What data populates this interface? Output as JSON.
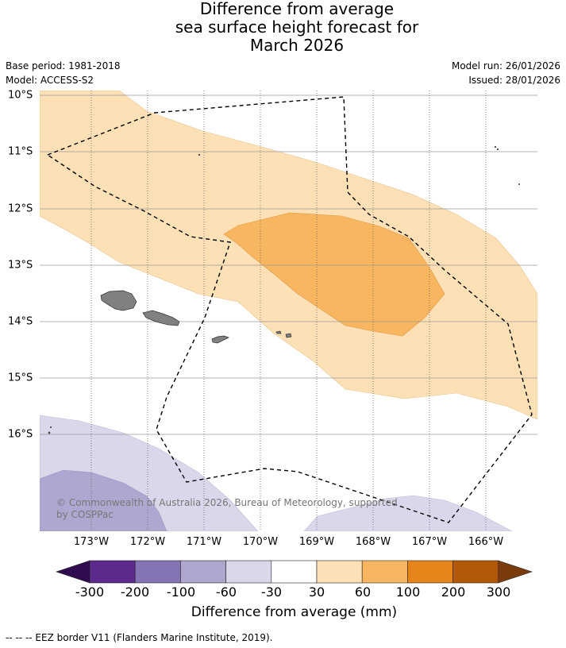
{
  "title": {
    "line1": "Difference from average",
    "line2": "sea surface height forecast for",
    "line3": "March 2026"
  },
  "meta": {
    "base_period": "Base period: 1981-2018",
    "model": "Model: ACCESS-S2",
    "model_run": "Model run: 26/01/2026",
    "issued": "Issued: 28/01/2026"
  },
  "axes": {
    "longitude_labels": [
      "173°W",
      "172°W",
      "171°W",
      "170°W",
      "169°W",
      "168°W",
      "167°W",
      "166°W"
    ],
    "latitude_labels": [
      "10°S",
      "11°S",
      "12°S",
      "13°S",
      "14°S",
      "15°S",
      "16°S"
    ]
  },
  "copyright": {
    "line1": "© Commonwealth of Australia 2026, Bureau of Meteorology, supported",
    "line2": "by COSPPac"
  },
  "colorbar": {
    "ticks": [
      "-300",
      "-200",
      "-100",
      "-60",
      "-30",
      "30",
      "60",
      "100",
      "200",
      "300"
    ],
    "colors": [
      "#5b2a8a",
      "#8474b4",
      "#b0a7d1",
      "#d8d8ea",
      "#ffffff",
      "#fde0b6",
      "#f9b661",
      "#e58519",
      "#b35808"
    ],
    "extend_low_color": "#2f0b4f",
    "extend_high_color": "#7b3b0a",
    "label": "Difference from average (mm)"
  },
  "legend": {
    "eez_text": "--  --  -- EEZ border V11 (Flanders Marine Institute, 2019)."
  },
  "map_colors": {
    "band_30_60": "#fde0b6",
    "band_60_100": "#f9b661",
    "band_neg_30_60": "#d8d8ea",
    "band_neg_60_100": "#b0a7d1",
    "land": "#808080"
  }
}
